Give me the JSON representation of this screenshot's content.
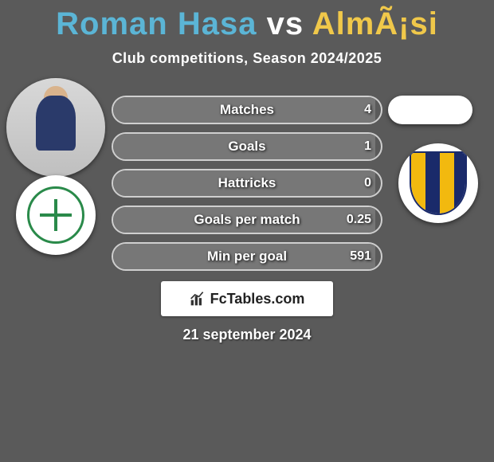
{
  "title": {
    "player_a": "Roman Hasa",
    "vs": "vs",
    "player_b": "AlmÃ¡si"
  },
  "subtitle": "Club competitions, Season 2024/2025",
  "date": "21 september 2024",
  "badge": {
    "text": "FcTables.com"
  },
  "colors": {
    "background": "#5a5a5a",
    "player_a_color": "#5bb5d6",
    "player_b_color": "#f0c84a",
    "pill_border": "#cfcfcf",
    "pill_fill": "#777777",
    "text_shadow": "rgba(0,0,0,0.9)"
  },
  "stats": {
    "pill_width": 340,
    "pill_height": 36,
    "pill_border_radius": 18,
    "label_fontsize": 17,
    "value_fontsize": 16,
    "rows": [
      {
        "label": "Matches",
        "value_b": "4",
        "fill_pct": 98
      },
      {
        "label": "Goals",
        "value_b": "1",
        "fill_pct": 98
      },
      {
        "label": "Hattricks",
        "value_b": "0",
        "fill_pct": 98
      },
      {
        "label": "Goals per match",
        "value_b": "0.25",
        "fill_pct": 98
      },
      {
        "label": "Min per goal",
        "value_b": "591",
        "fill_pct": 98
      }
    ]
  },
  "avatars": {
    "player_a": {
      "kind": "photo-placeholder"
    },
    "player_b": {
      "kind": "blank-oval"
    },
    "club_a": {
      "name": "MFK Skalica",
      "primary": "#2a8a4a",
      "secondary": "#ffffff"
    },
    "club_b": {
      "name": "FC DAC",
      "primary": "#f2b90f",
      "secondary": "#1a2a6a"
    }
  }
}
